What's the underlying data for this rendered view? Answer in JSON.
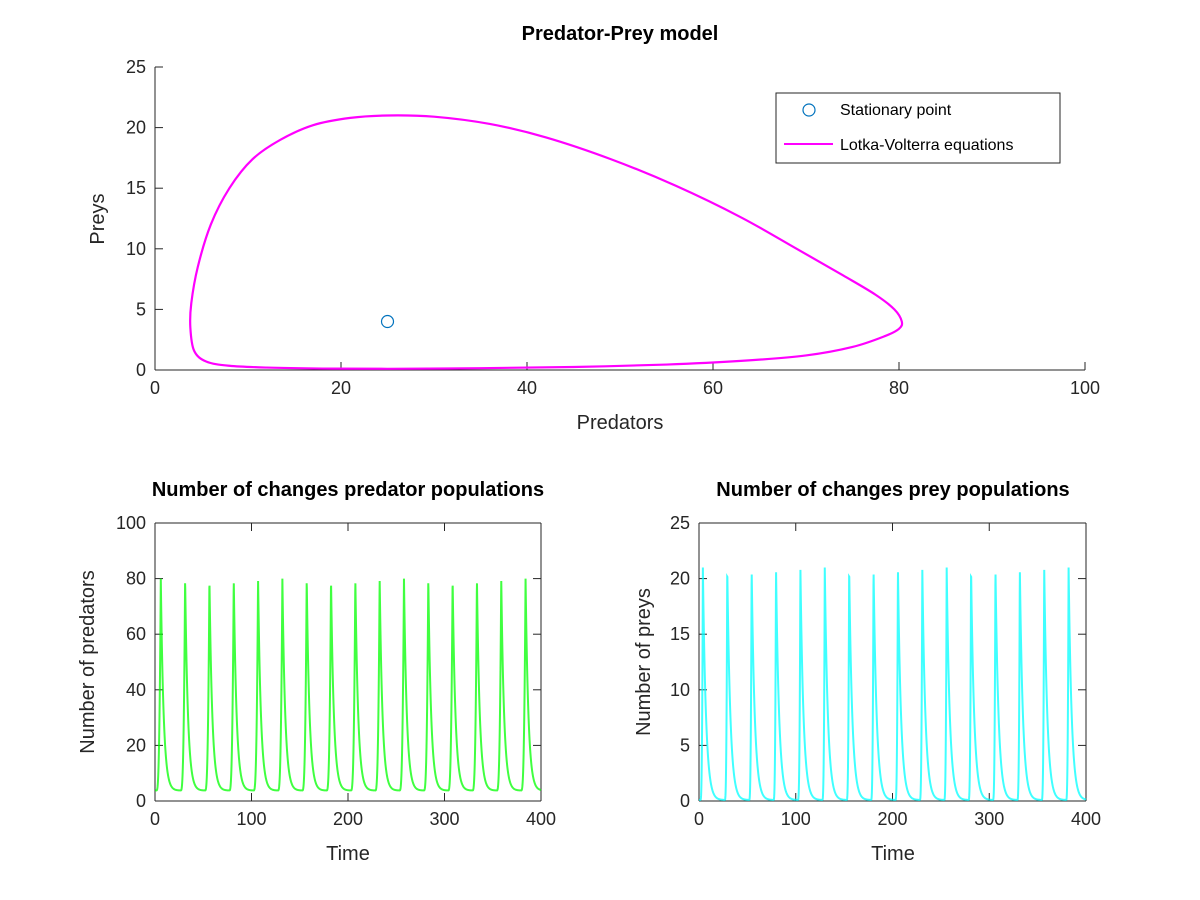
{
  "chart_data": [
    {
      "id": "phase",
      "type": "line",
      "title": "Predator-Prey model",
      "xlabel": "Predators",
      "ylabel": "Preys",
      "xlim": [
        0,
        100
      ],
      "ylim": [
        0,
        25
      ],
      "xticks": [
        0,
        20,
        40,
        60,
        80,
        100
      ],
      "yticks": [
        0,
        5,
        10,
        15,
        20,
        25
      ],
      "grid": false,
      "legend_position": "top-right",
      "legend": [
        "Stationary point",
        "Lotka-Volterra equations"
      ],
      "series": [
        {
          "name": "Stationary point",
          "marker": "circle",
          "color": "#0072bd",
          "points": [
            [
              25,
              4
            ]
          ]
        },
        {
          "name": "Lotka-Volterra equations",
          "color": "#ff00ff",
          "closed": true,
          "points": [
            [
              80.3,
              4.0
            ],
            [
              79.5,
              5.0
            ],
            [
              77.5,
              6.2
            ],
            [
              74.0,
              7.8
            ],
            [
              69.0,
              10.0
            ],
            [
              63.0,
              12.6
            ],
            [
              56.0,
              15.2
            ],
            [
              49.0,
              17.4
            ],
            [
              42.0,
              19.2
            ],
            [
              36.0,
              20.3
            ],
            [
              30.0,
              20.9
            ],
            [
              25.0,
              21.0
            ],
            [
              21.0,
              20.8
            ],
            [
              17.0,
              20.2
            ],
            [
              13.5,
              19.0
            ],
            [
              10.5,
              17.4
            ],
            [
              8.0,
              15.0
            ],
            [
              6.0,
              12.0
            ],
            [
              4.6,
              8.5
            ],
            [
              3.9,
              5.5
            ],
            [
              3.8,
              3.5
            ],
            [
              4.2,
              1.6
            ],
            [
              5.5,
              0.7
            ],
            [
              8.0,
              0.35
            ],
            [
              12.0,
              0.2
            ],
            [
              18.0,
              0.12
            ],
            [
              25.0,
              0.1
            ],
            [
              35.0,
              0.15
            ],
            [
              45.0,
              0.25
            ],
            [
              55.0,
              0.45
            ],
            [
              63.0,
              0.75
            ],
            [
              70.0,
              1.2
            ],
            [
              75.0,
              1.9
            ],
            [
              78.5,
              2.8
            ],
            [
              80.0,
              3.4
            ]
          ]
        }
      ]
    },
    {
      "id": "predators",
      "type": "line",
      "title": "Number of changes predator populations",
      "xlabel": "Time",
      "ylabel": "Number of predators",
      "xlim": [
        0,
        400
      ],
      "ylim": [
        0,
        100
      ],
      "xticks": [
        0,
        100,
        200,
        300,
        400
      ],
      "yticks": [
        0,
        20,
        40,
        60,
        80,
        100
      ],
      "grid": false,
      "series": [
        {
          "color": "#00ff00",
          "period": 25.2,
          "peak_time": 6.0,
          "min": 3.8,
          "max": 80.0,
          "rise_fraction": 0.18,
          "t_start": 0,
          "t_end": 400
        }
      ]
    },
    {
      "id": "preys",
      "type": "line",
      "title": "Number of changes prey populations",
      "xlabel": "Time",
      "ylabel": "Number of preys",
      "xlim": [
        0,
        400
      ],
      "ylim": [
        0,
        25
      ],
      "xticks": [
        0,
        100,
        200,
        300,
        400
      ],
      "yticks": [
        0,
        5,
        10,
        15,
        20,
        25
      ],
      "grid": false,
      "series": [
        {
          "color": "#00ffff",
          "period": 25.2,
          "peak_time": 4.0,
          "min": 0.1,
          "max": 21.0,
          "rise_fraction": 0.1,
          "t_start": 0,
          "t_end": 400
        }
      ]
    }
  ]
}
